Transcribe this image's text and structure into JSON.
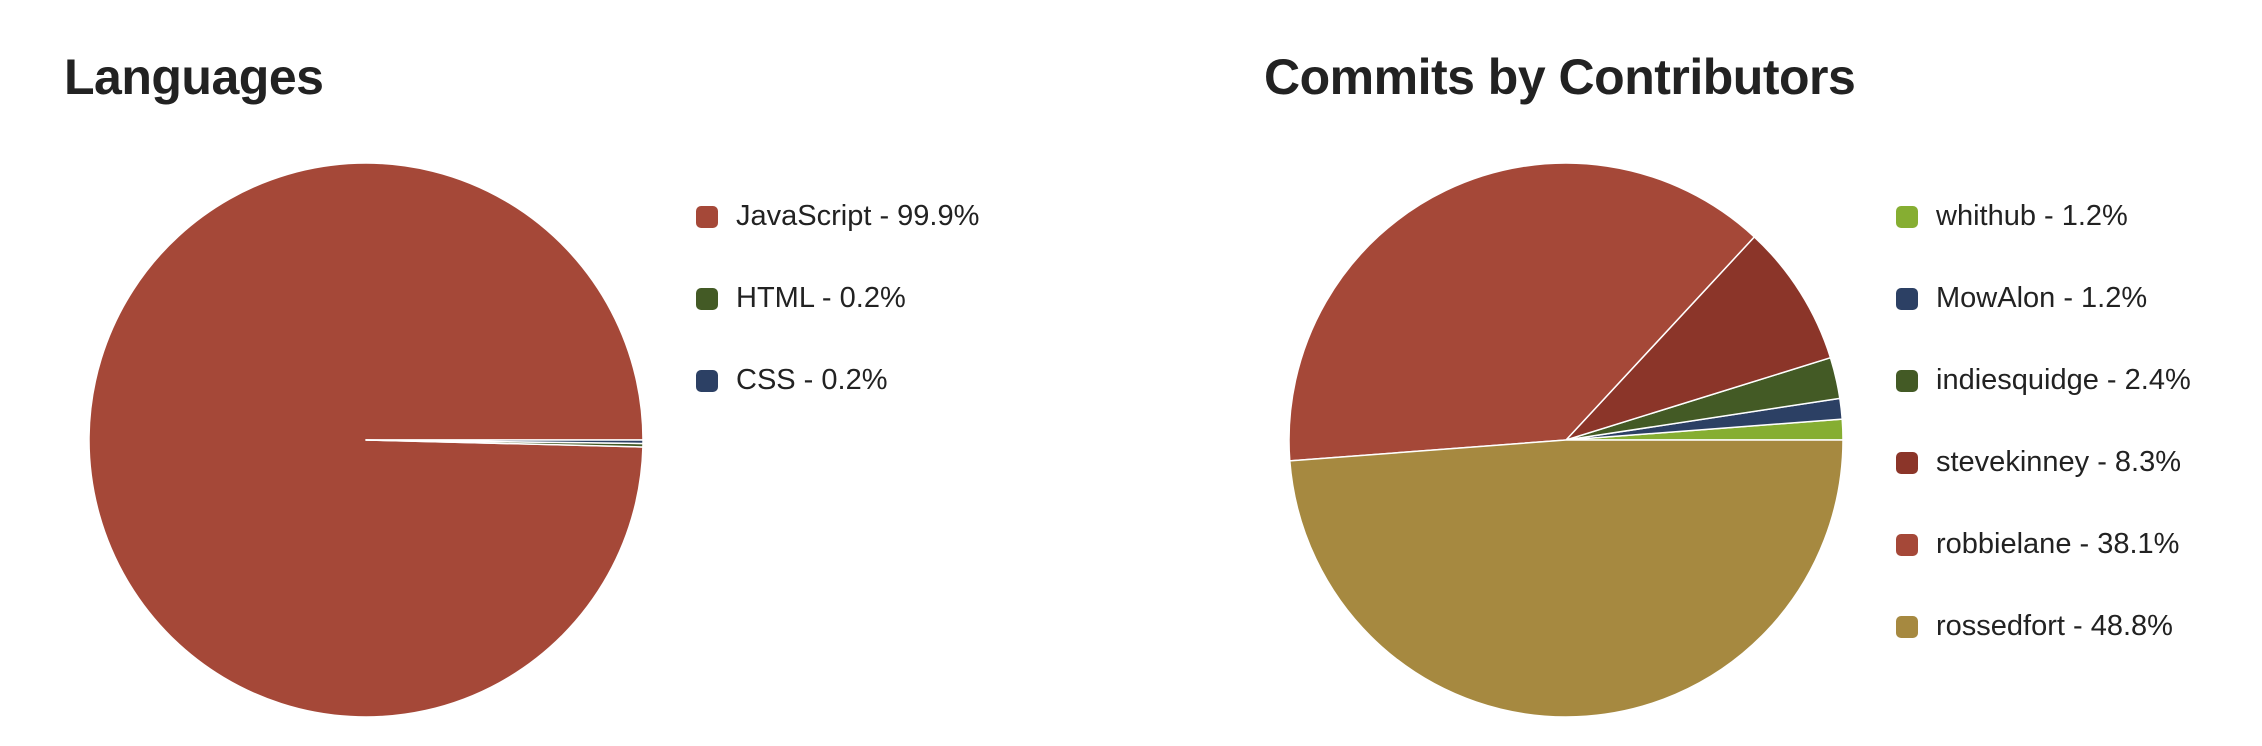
{
  "chart_data": [
    {
      "type": "pie",
      "title": "Languages",
      "legend_position": "right",
      "slices": [
        {
          "label": "JavaScript - 99.9%",
          "value": 99.9,
          "color": "#a54838"
        },
        {
          "label": "HTML - 0.2%",
          "value": 0.2,
          "color": "#435a25"
        },
        {
          "label": "CSS - 0.2%",
          "value": 0.2,
          "color": "#2c4064"
        }
      ]
    },
    {
      "type": "pie",
      "title": "Commits by Contributors",
      "legend_position": "right",
      "slices": [
        {
          "label": "whithub - 1.2%",
          "value": 1.2,
          "color": "#86ae32"
        },
        {
          "label": "MowAlon - 1.2%",
          "value": 1.2,
          "color": "#2c4064"
        },
        {
          "label": "indiesquidge - 2.4%",
          "value": 2.4,
          "color": "#435a25"
        },
        {
          "label": "stevekinney - 8.3%",
          "value": 8.3,
          "color": "#8b3529"
        },
        {
          "label": "robbielane - 38.1%",
          "value": 38.1,
          "color": "#a54838"
        },
        {
          "label": "rossedfort - 48.8%",
          "value": 48.8,
          "color": "#a68940"
        }
      ]
    }
  ]
}
